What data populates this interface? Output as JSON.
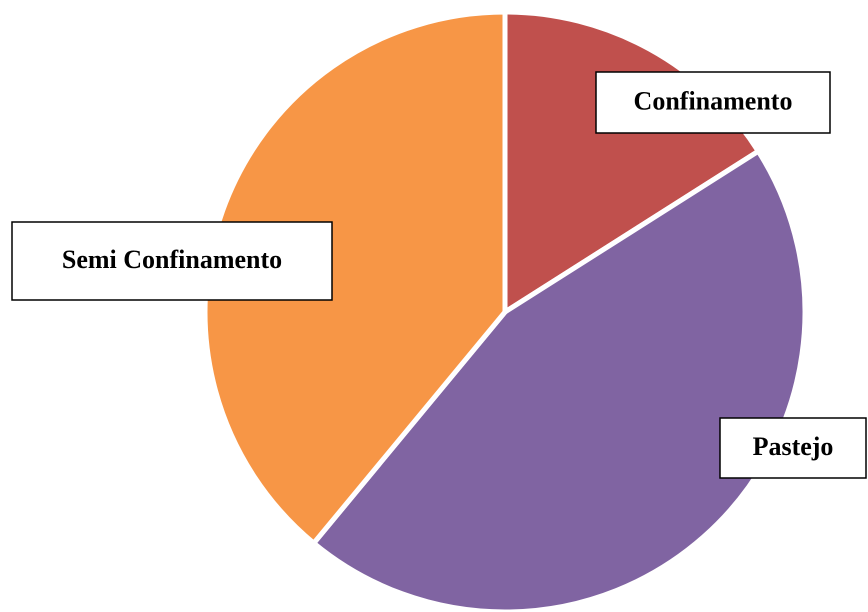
{
  "chart_data": {
    "type": "pie",
    "categories": [
      "Confinamento",
      "Pastejo",
      "Semi Confinamento"
    ],
    "values": [
      16,
      45,
      39
    ],
    "colors": [
      "#c0504d",
      "#8064a2",
      "#f79646"
    ]
  }
}
